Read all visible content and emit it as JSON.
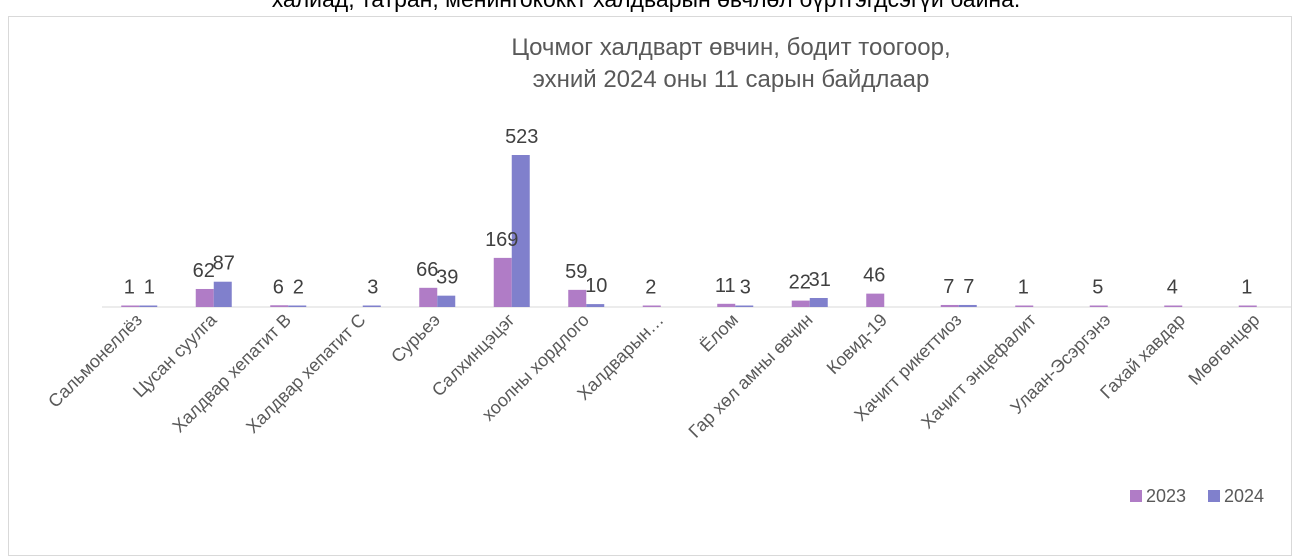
{
  "header_text": "халиад, татран, менингококкт халдварын  өвчлөл бүртгэгдсэгүй байна.",
  "chart_data": {
    "type": "bar",
    "title": "Цочмог халдварт өвчин, бодит тоогоор,",
    "subtitle": "эхний 2024 оны 11 сарын байдлаар",
    "categories": [
      "Сальмонеллёз",
      "Цусан суулга",
      "Халдвар хепатит В",
      "Халдвар хепатит С",
      "Сурьеэ",
      "Салхинцэцэг",
      "хоолны хордлого",
      "Халдварын…",
      "Ёлом",
      "Гар хөл амны өвчин",
      "Ковид-19",
      "Хачигт рикеттиоз",
      "Хачигт энцефалит",
      "Улаан-Эсэргэнэ",
      "Гахай хавдар",
      "Мөөгөнцөр"
    ],
    "series": [
      {
        "name": "2023",
        "color": "#b07cc6",
        "values": [
          1,
          62,
          6,
          null,
          66,
          169,
          59,
          2,
          11,
          22,
          46,
          7,
          1,
          5,
          4,
          1
        ]
      },
      {
        "name": "2024",
        "color": "#8080cc",
        "values": [
          1,
          87,
          2,
          3,
          39,
          523,
          10,
          null,
          3,
          31,
          null,
          7,
          null,
          null,
          null,
          null
        ]
      }
    ],
    "legend_position": "bottom-right",
    "grid": false
  }
}
